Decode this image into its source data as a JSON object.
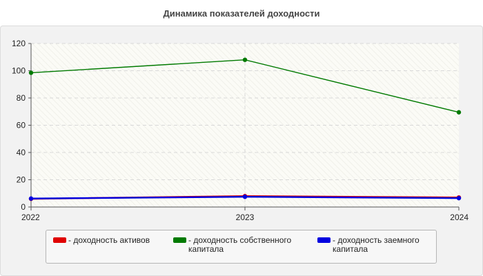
{
  "chart_data": {
    "type": "line",
    "title": "Динамика показателей доходности",
    "xlabel": "",
    "ylabel": "",
    "categories": [
      "2022",
      "2023",
      "2024"
    ],
    "ylim": [
      0,
      120
    ],
    "yticks": [
      0,
      20,
      40,
      60,
      80,
      100,
      120
    ],
    "grid": true,
    "legend_position": "bottom",
    "series": [
      {
        "name": "- доходность активов",
        "values": [
          6.0,
          8.0,
          7.0
        ],
        "color": "#e00000"
      },
      {
        "name": "- доходность собственного капитала",
        "values": [
          98.5,
          108.0,
          69.5
        ],
        "color": "#007a00"
      },
      {
        "name": "- доходность заемного капитала",
        "values": [
          6.2,
          7.5,
          6.5
        ],
        "color": "#0000e0"
      }
    ]
  }
}
